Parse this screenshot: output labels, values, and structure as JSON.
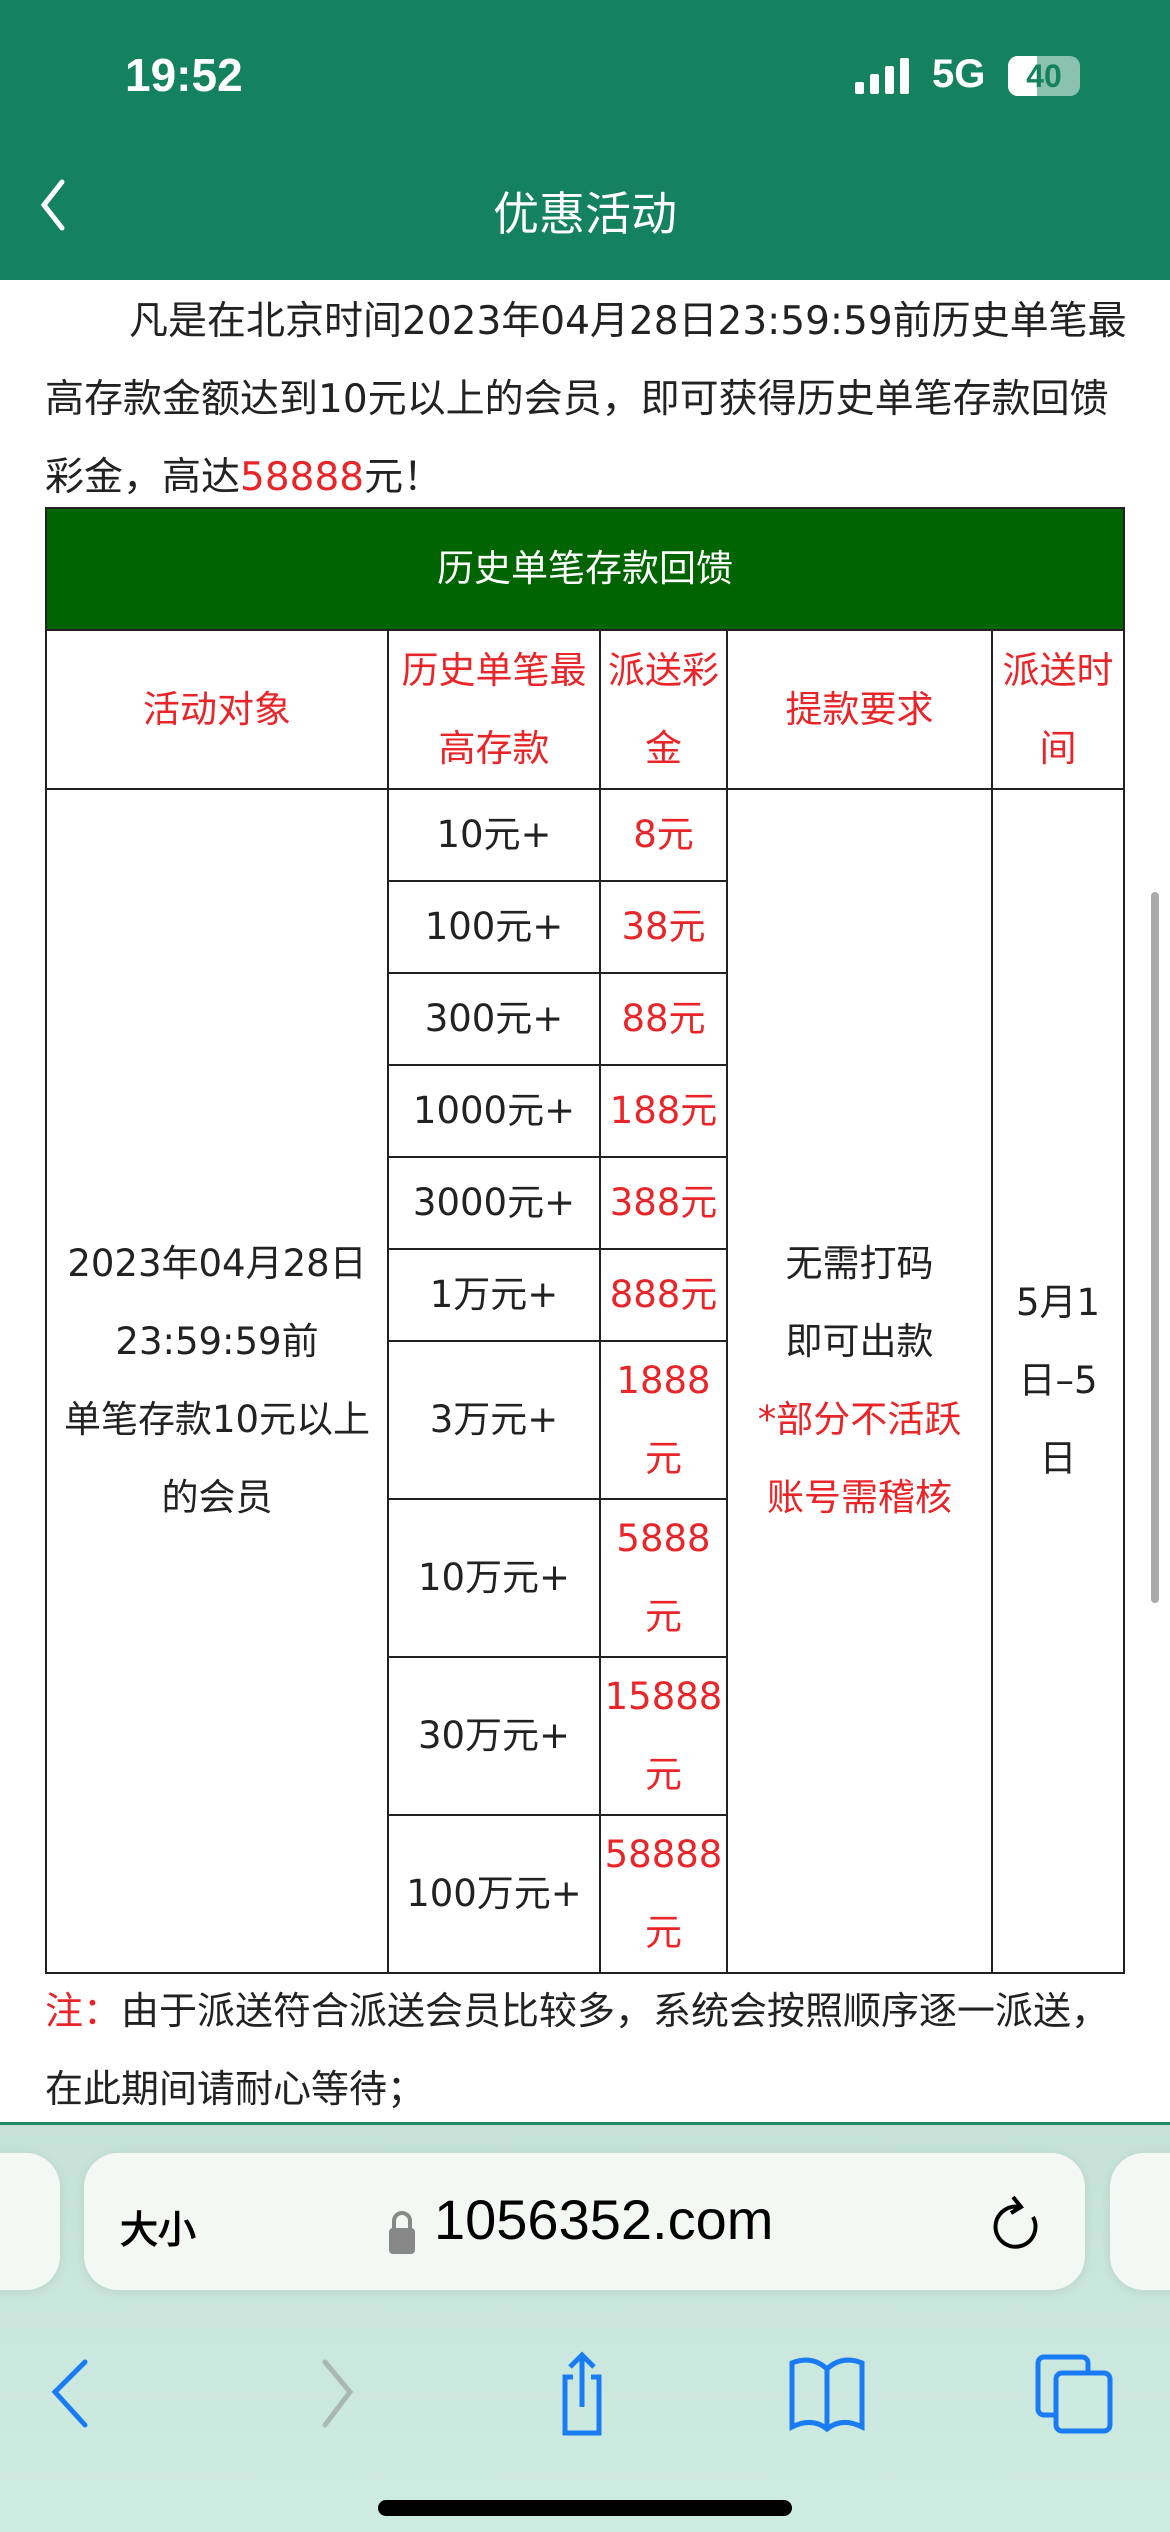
{
  "status": {
    "time": "19:52",
    "network": "5G",
    "battery": "40"
  },
  "header": {
    "title": "优惠活动"
  },
  "intro": {
    "text_before": "凡是在北京时间2023年04月28日23:59:59前历史单笔最高存款金额达到10元以上的会员，即可获得历史单笔存款回馈彩金，高达",
    "highlight": "58888",
    "text_after": "元！"
  },
  "table": {
    "title": "历史单笔存款回馈",
    "headers": [
      "活动对象",
      "历史单笔最高存款",
      "派送彩金",
      "提款要求",
      "派送时间"
    ],
    "target": [
      "2023年04月28日",
      "23:59:59前",
      "单笔存款10元以上",
      "的会员"
    ],
    "rows": [
      {
        "deposit": "10元+",
        "bonus": "8元"
      },
      {
        "deposit": "100元+",
        "bonus": "38元"
      },
      {
        "deposit": "300元+",
        "bonus": "88元"
      },
      {
        "deposit": "1000元+",
        "bonus": "188元"
      },
      {
        "deposit": "3000元+",
        "bonus": "388元"
      },
      {
        "deposit": "1万元+",
        "bonus": "888元"
      },
      {
        "deposit": "3万元+",
        "bonus": "1888元"
      },
      {
        "deposit": "10万元+",
        "bonus": "5888元"
      },
      {
        "deposit": "30万元+",
        "bonus": "15888元"
      },
      {
        "deposit": "100万元+",
        "bonus": "58888元"
      }
    ],
    "withdraw": [
      "无需打码",
      "即可出款"
    ],
    "withdraw_note": [
      "*部分不活跃",
      "账号需稽核"
    ],
    "time": "5月1日–5日"
  },
  "note": {
    "label": "注：",
    "text": "由于派送符合派送会员比较多，系统会按照顺序逐一派送，在此期间请耐心等待；"
  },
  "browser": {
    "aa": "大小",
    "url": "1056352.com"
  },
  "colors": {
    "header": "#15825f",
    "table_title": "#006400",
    "highlight": "#e8262a",
    "toolbar_icon": "#1a7cf5"
  }
}
